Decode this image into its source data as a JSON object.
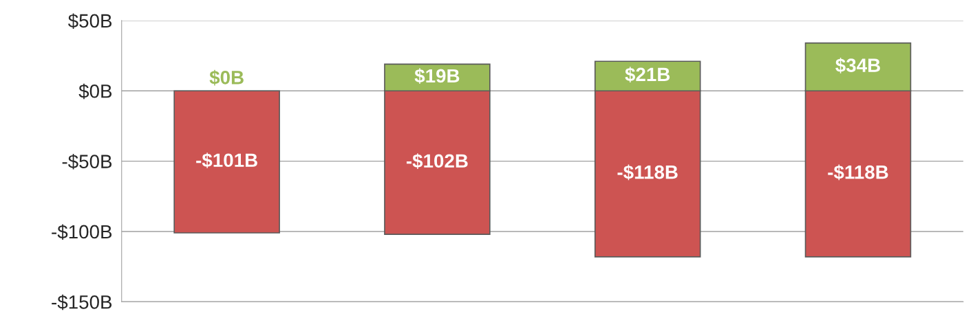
{
  "chart_data": {
    "type": "bar",
    "categories": [
      null,
      null,
      null,
      null
    ],
    "stacked": true,
    "series": [
      {
        "color": "#cd5452",
        "values": [
          -101,
          -102,
          -118,
          -118
        ],
        "value_labels": [
          "-$101B",
          "-$102B",
          "-$118B",
          "-$118B"
        ]
      },
      {
        "color": "#9bbb59",
        "values": [
          0,
          19,
          21,
          34
        ],
        "value_labels": [
          "$0B",
          "$19B",
          "$21B",
          "$34B"
        ]
      }
    ],
    "ylim": [
      -150,
      50
    ],
    "yticks": [
      {
        "value": 50,
        "label": "$50B"
      },
      {
        "value": 0,
        "label": "$0B"
      },
      {
        "value": -50,
        "label": "-$50B"
      },
      {
        "value": -100,
        "label": "-$100B"
      },
      {
        "value": -150,
        "label": "-$150B"
      }
    ],
    "grid": "y"
  }
}
